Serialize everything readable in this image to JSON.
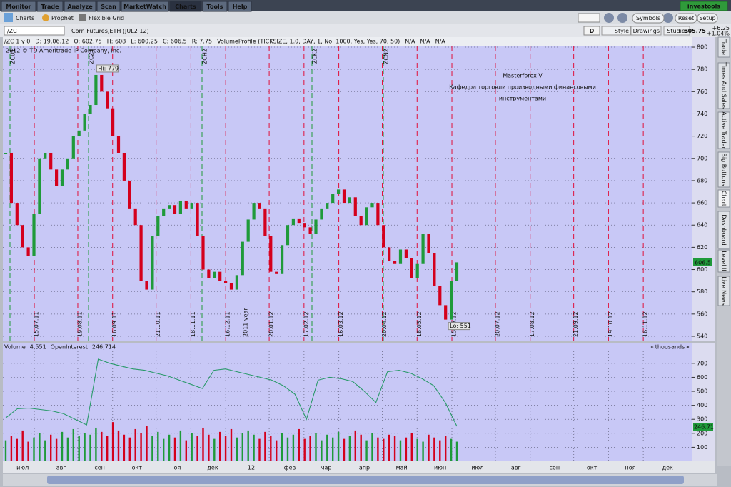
{
  "tabs": [
    "Monitor",
    "Trade",
    "Analyze",
    "Scan",
    "MarketWatch",
    "Charts",
    "Tools",
    "Help"
  ],
  "brand": "investools",
  "subtabs": [
    "Charts",
    "Prophet",
    "Flexible Grid"
  ],
  "right_buttons": [
    "Symbols",
    "Reset",
    "Setup"
  ],
  "symbol_bar": {
    "symbol": "/ZC",
    "description": "Corn Futures,ETH (JUL2 12)",
    "aggregation": "D",
    "buttons": [
      "Style",
      "Drawings",
      "Studies"
    ],
    "last": 605.75,
    "change": "+6.25",
    "change_pct": "+1.04%"
  },
  "info_line": [
    "/ZC 1 y 0",
    "D: 19.06.12",
    "O: 602.75",
    "H: 608",
    "L: 600.25",
    "C: 606.5",
    "R: 7.75",
    "VolumeProfile (TICKSIZE, 1.0, DAY, 1, No, 1000, Yes, Yes, 70, 50)",
    "N/A",
    "N/A",
    "N/A"
  ],
  "side_tabs": [
    "Trade",
    "Times And Sales",
    "Active Trader",
    "Big Buttons",
    "Chart",
    "Dashboard",
    "Level II",
    "Live News"
  ],
  "chart_data": [
    {
      "type": "candlestick",
      "watermark": "2012 © TD Ameritrade IP Company, Inc.",
      "annotation": [
        "Masterforex-V",
        "Кафедра торговли производными финансовыми",
        "инструментами"
      ],
      "closes": [
        705,
        660,
        640,
        620,
        612,
        650,
        700,
        705,
        690,
        675,
        690,
        700,
        720,
        725,
        740,
        748,
        775,
        760,
        745,
        720,
        705,
        680,
        655,
        640,
        590,
        582,
        630,
        648,
        655,
        658,
        650,
        662,
        655,
        660,
        630,
        600,
        592,
        598,
        590,
        588,
        582,
        595,
        625,
        645,
        660,
        655,
        630,
        598,
        596,
        622,
        640,
        646,
        642,
        638,
        632,
        645,
        655,
        660,
        668,
        672,
        660,
        665,
        648,
        640,
        656,
        660,
        640,
        620,
        608,
        605,
        618,
        610,
        592,
        605,
        632,
        615,
        585,
        568,
        555,
        590,
        606.5
      ],
      "up_color": "#1f9a3a",
      "down_color": "#d4001c",
      "high_label": "Hi: 779",
      "low_label": "Lo: 551",
      "last_value_tag": 606.5,
      "event_lines": [
        "15.07.11",
        "19.08.11",
        "16.09.11",
        "21.10.11",
        "18.11.11",
        "16.12.11",
        "20.01.12",
        "17.02.12",
        "16.03.12",
        "20.04.12",
        "18.05.12",
        "15.06.12",
        "20.07.12",
        "17.08.12",
        "21.09.12",
        "19.10.12",
        "16.11.12"
      ],
      "contract_lines": [
        "ZCU1",
        "ZCZ1",
        "ZCH2",
        "ZCK2",
        "ZCN2"
      ],
      "year_label": "2011 year",
      "ylim": [
        535.5,
        801.3
      ],
      "yticks": [
        540,
        560,
        580,
        600,
        620,
        640,
        660,
        680,
        700,
        720,
        740,
        760,
        780,
        800
      ],
      "grid": true
    },
    {
      "type": "bar-line",
      "legend": [
        "Volume",
        "4,551",
        "OpenInterest",
        "246,714"
      ],
      "units": "<thousands>",
      "volume": [
        150,
        180,
        160,
        220,
        140,
        170,
        200,
        150,
        190,
        160,
        210,
        170,
        230,
        180,
        200,
        190,
        240,
        210,
        180,
        280,
        220,
        190,
        170,
        230,
        200,
        250,
        180,
        210,
        160,
        190,
        170,
        220,
        150,
        200,
        180,
        240,
        190,
        160,
        210,
        180,
        230,
        170,
        200,
        220,
        190,
        160,
        210,
        180,
        150,
        200,
        170,
        190,
        230,
        160,
        180,
        200,
        150,
        190,
        170,
        210,
        160,
        180,
        220,
        190,
        150,
        200,
        170,
        160,
        190,
        180,
        150,
        170,
        200,
        160,
        140,
        190,
        170,
        150,
        180,
        160,
        140
      ],
      "open_interest": [
        310,
        375,
        380,
        370,
        360,
        340,
        300,
        260,
        730,
        700,
        680,
        660,
        650,
        630,
        610,
        580,
        550,
        520,
        650,
        660,
        640,
        620,
        600,
        580,
        540,
        480,
        300,
        580,
        600,
        590,
        570,
        500,
        420,
        640,
        650,
        630,
        590,
        540,
        420,
        250
      ],
      "last_value_tag": 246.71,
      "months": [
        "июл",
        "авг",
        "сен",
        "окт",
        "ноя",
        "дек",
        "12",
        "фев",
        "мар",
        "апр",
        "май",
        "июн",
        "июл",
        "авг",
        "сен",
        "окт",
        "ноя",
        "дек"
      ],
      "ylim": [
        0,
        786
      ],
      "yticks": [
        100,
        200,
        300,
        400,
        500,
        600,
        700
      ],
      "grid": true
    }
  ]
}
